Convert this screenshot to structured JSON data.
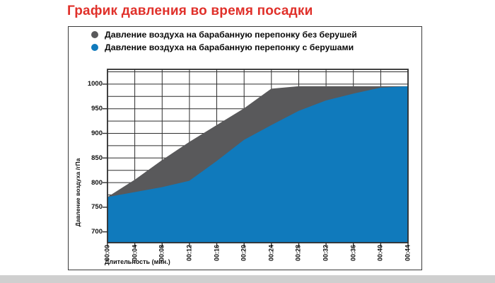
{
  "page": {
    "title": "График давления во время посадки",
    "title_color": "#e0302a",
    "bottom_strip_color": "#cfcfcf",
    "panel_border_color": "#3a3a3a"
  },
  "chart_data": {
    "type": "area",
    "title": "График давления во время посадки",
    "xlabel": "Длительность (мин.)",
    "ylabel": "Давление воздуха /гПа",
    "categories": [
      "00:00",
      "00:04",
      "00:08",
      "00:12",
      "00:16",
      "00:20",
      "00:24",
      "00:28",
      "00:32",
      "00:36",
      "00:40",
      "00:44"
    ],
    "x_minutes": [
      0,
      4,
      8,
      12,
      16,
      20,
      24,
      28,
      32,
      36,
      40,
      44
    ],
    "series": [
      {
        "name": "Давление воздуха на барабанную перепонку без берушей",
        "color": "#59595b",
        "values": [
          770,
          805,
          845,
          882,
          916,
          950,
          990,
          995,
          995,
          995,
          995,
          995
        ]
      },
      {
        "name": "Давление воздуха на барабанную перепонку с берушами",
        "color": "#107abc",
        "values": [
          770,
          780,
          790,
          803,
          843,
          886,
          916,
          945,
          966,
          980,
          992,
          995
        ]
      }
    ],
    "ylim": [
      678,
      1030
    ],
    "yticks_labeled": [
      700,
      750,
      800,
      850,
      900,
      950,
      1000
    ],
    "grid_step_hpa": 25,
    "grid": true,
    "grid_color": "#2e2e2e",
    "legend_position": "top-left"
  }
}
